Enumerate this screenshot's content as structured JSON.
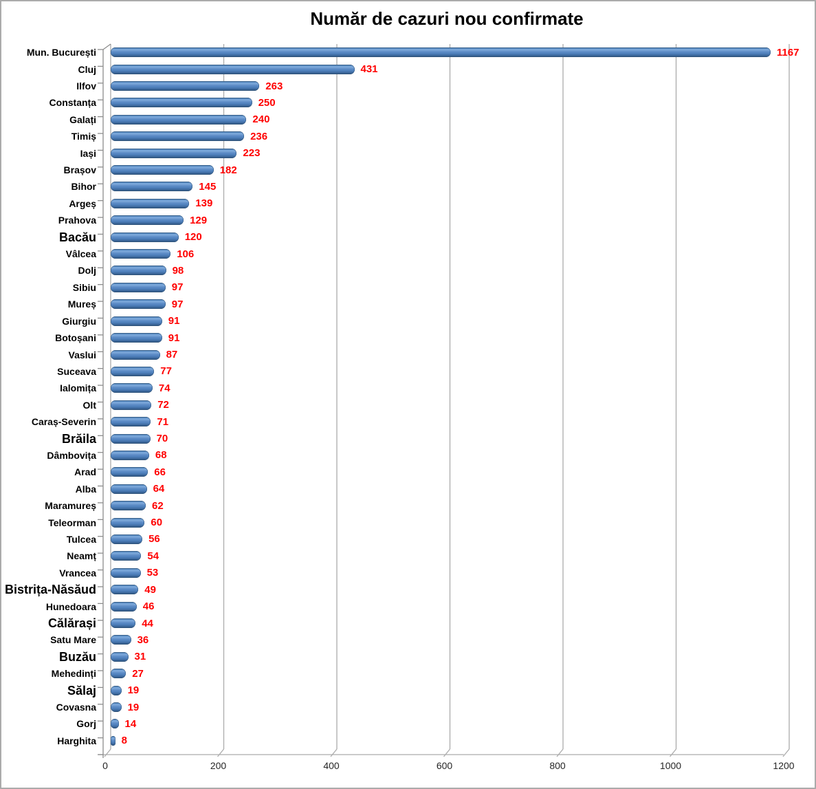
{
  "chart_data": {
    "type": "bar",
    "orientation": "horizontal",
    "style": "3d-cylinder",
    "title": "Număr de cazuri nou confirmate",
    "categories": [
      "Mun. București",
      "Cluj",
      "Ilfov",
      "Constanța",
      "Galați",
      "Timiș",
      "Iași",
      "Brașov",
      "Bihor",
      "Argeș",
      "Prahova",
      "Bacău",
      "Vâlcea",
      "Dolj",
      "Sibiu",
      "Mureș",
      "Giurgiu",
      "Botoșani",
      "Vaslui",
      "Suceava",
      "Ialomița",
      "Olt",
      "Caraș-Severin",
      "Brăila",
      "Dâmbovița",
      "Arad",
      "Alba",
      "Maramureș",
      "Teleorman",
      "Tulcea",
      "Neamț",
      "Vrancea",
      "Bistrița-Năsăud",
      "Hunedoara",
      "Călărași",
      "Satu Mare",
      "Buzău",
      "Mehedinți",
      "Sălaj",
      "Covasna",
      "Gorj",
      "Harghita"
    ],
    "values": [
      1167,
      431,
      263,
      250,
      240,
      236,
      223,
      182,
      145,
      139,
      129,
      120,
      106,
      98,
      97,
      97,
      91,
      91,
      87,
      77,
      74,
      72,
      71,
      70,
      68,
      66,
      64,
      62,
      60,
      56,
      54,
      53,
      49,
      46,
      44,
      36,
      31,
      27,
      19,
      19,
      14,
      8
    ],
    "value_labels_shown": true,
    "xlabel": "",
    "ylabel": "",
    "xlim": [
      0,
      1200
    ],
    "x_ticks": [
      0,
      200,
      400,
      600,
      800,
      1000,
      1200
    ],
    "grid": true,
    "legend": "none",
    "colors": {
      "bar": "#4F81BD",
      "value_label": "#FF0000",
      "category_label": "#000000",
      "gridline": "#ABABAB",
      "axis": "#8C8C8C",
      "background": "#FFFFFF",
      "tick_label": "#262626"
    }
  }
}
